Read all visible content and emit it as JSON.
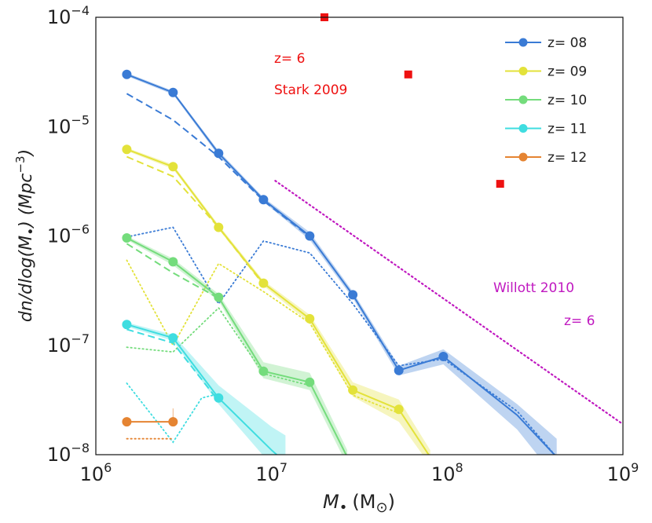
{
  "chart_data": {
    "type": "line",
    "xscale": "log",
    "yscale": "log",
    "xlim_exp": [
      6,
      9
    ],
    "ylim_exp": [
      -8,
      -4
    ],
    "xlabel_main": "M",
    "xlabel_sub": "•",
    "xlabel_unit": "(M",
    "xlabel_unit_sub": "⊙",
    "xlabel_close": ")",
    "ylabel_main": "dn/dlog(M",
    "ylabel_sub": "•",
    "ylabel_unit": ") (Mpc",
    "ylabel_unit_sup": "−3",
    "ylabel_close": ")",
    "x_ticks": [
      {
        "base": "10",
        "exp": "6",
        "value": 6
      },
      {
        "base": "10",
        "exp": "7",
        "value": 7
      },
      {
        "base": "10",
        "exp": "8",
        "value": 8
      },
      {
        "base": "10",
        "exp": "9",
        "value": 9
      }
    ],
    "y_ticks": [
      {
        "base": "10",
        "exp": "−4",
        "value": -4
      },
      {
        "base": "10",
        "exp": "−5",
        "value": -5
      },
      {
        "base": "10",
        "exp": "−6",
        "value": -6
      },
      {
        "base": "10",
        "exp": "−7",
        "value": -7
      },
      {
        "base": "10",
        "exp": "−8",
        "value": -8
      }
    ],
    "series": [
      {
        "name": "z= 08",
        "color": "#3a7bd5",
        "fill": "#3a7bd5",
        "x": [
          1500000.0,
          2750000.0,
          5000000.0,
          9000000.0,
          16500000.0,
          29000000.0,
          53000000.0,
          95000000.0,
          250000000.0,
          420000000.0
        ],
        "y": [
          3e-05,
          2.05e-05,
          5.7e-06,
          2.15e-06,
          1e-06,
          2.9e-07,
          5.9e-08,
          7.9e-08,
          2.3e-08,
          9.5e-09
        ],
        "band_lo": [
          2.9e-05,
          1.97e-05,
          5.4e-06,
          2.05e-06,
          9.2e-07,
          2.7e-07,
          5.3e-08,
          6.7e-08,
          1.7e-08,
          6e-09
        ],
        "band_hi": [
          3.1e-05,
          2.12e-05,
          6e-06,
          2.25e-06,
          1.08e-06,
          3.1e-07,
          6.5e-08,
          9.2e-08,
          2.9e-08,
          1.4e-08
        ],
        "marker_count": 8,
        "dashed_x": [
          1500000.0,
          2750000.0,
          5000000.0,
          9000000.0,
          16500000.0
        ],
        "dashed_y": [
          2e-05,
          1.15e-05,
          5.3e-06,
          2.1e-06,
          9.8e-07
        ],
        "dotted_x": [
          1500000.0,
          2750000.0,
          5000000.0,
          9000000.0,
          16500000.0,
          29000000.0,
          53000000.0,
          95000000.0,
          250000000.0,
          420000000.0
        ],
        "dotted_y": [
          9.8e-07,
          1.2e-06,
          2.4e-07,
          9e-07,
          7e-07,
          2.4e-07,
          6.5e-08,
          7.5e-08,
          2.5e-08,
          9.5e-09
        ]
      },
      {
        "name": "z= 09",
        "color": "#e3e23a",
        "fill": "#e3e23a",
        "x": [
          1500000.0,
          2750000.0,
          5000000.0,
          9000000.0,
          16500000.0,
          29000000.0,
          53000000.0,
          80000000.0
        ],
        "y": [
          6.2e-06,
          4.3e-06,
          1.2e-06,
          3.7e-07,
          1.75e-07,
          3.9e-08,
          2.6e-08,
          9.5e-09
        ],
        "band_lo": [
          6e-06,
          4.1e-06,
          1.15e-06,
          3.5e-07,
          1.6e-07,
          3.4e-08,
          2e-08,
          8e-09
        ],
        "band_hi": [
          6.4e-06,
          4.5e-06,
          1.26e-06,
          3.9e-07,
          1.9e-07,
          4.6e-08,
          3.2e-08,
          1.1e-08
        ],
        "marker_count": 7,
        "dashed_x": [
          1500000.0,
          2750000.0,
          5000000.0,
          9000000.0
        ],
        "dashed_y": [
          5.3e-06,
          3.5e-06,
          1.2e-06,
          3.6e-07
        ],
        "dotted_x": [
          1500000.0,
          2750000.0,
          5000000.0,
          9000000.0,
          16500000.0,
          29000000.0,
          53000000.0
        ],
        "dotted_y": [
          6e-07,
          1e-07,
          5.6e-07,
          3.1e-07,
          1.6e-07,
          3.5e-08,
          2.4e-08
        ]
      },
      {
        "name": "z= 10",
        "color": "#74dc7c",
        "fill": "#74dc7c",
        "x": [
          1500000.0,
          2750000.0,
          5000000.0,
          9000000.0,
          16500000.0,
          27000000.0
        ],
        "y": [
          9.6e-07,
          5.8e-07,
          2.75e-07,
          5.8e-08,
          4.6e-08,
          9.5e-09
        ],
        "band_lo": [
          9.2e-07,
          5.4e-07,
          2.55e-07,
          5e-08,
          3.9e-08,
          8e-09
        ],
        "band_hi": [
          1e-06,
          6.2e-07,
          2.95e-07,
          7e-08,
          5.6e-08,
          1.1e-08
        ],
        "marker_count": 5,
        "dashed_x": [
          1500000.0,
          2750000.0,
          5000000.0
        ],
        "dashed_y": [
          8.5e-07,
          4.6e-07,
          2.7e-07
        ],
        "dotted_x": [
          1500000.0,
          2750000.0,
          5000000.0,
          9000000.0,
          16500000.0
        ],
        "dotted_y": [
          9.6e-08,
          8.7e-08,
          2.2e-07,
          5.5e-08,
          4.3e-08
        ]
      },
      {
        "name": "z= 11",
        "color": "#3fdde0",
        "fill": "#3fdde0",
        "x": [
          1500000.0,
          2750000.0,
          5000000.0,
          10000000.0,
          12000000.0
        ],
        "y": [
          1.55e-07,
          1.17e-07,
          3.3e-08,
          1.1e-08,
          8.5e-09
        ],
        "band_lo": [
          1.48e-07,
          1.1e-07,
          2.9e-08,
          8e-09,
          6e-09
        ],
        "band_hi": [
          1.62e-07,
          1.25e-07,
          4.3e-08,
          1.8e-08,
          1.5e-08
        ],
        "marker_count": 3,
        "dashed_x": [
          1500000.0,
          2750000.0,
          5000000.0
        ],
        "dashed_y": [
          1.4e-07,
          1.05e-07,
          3.1e-08
        ],
        "dotted_x": [
          1500000.0,
          2750000.0,
          4000000.0,
          5000000.0
        ],
        "dotted_y": [
          4.5e-08,
          1.3e-08,
          3.3e-08,
          3.6e-08
        ]
      },
      {
        "name": "z= 12",
        "color": "#e58432",
        "fill": "#e58432",
        "x": [
          1500000.0,
          2750000.0
        ],
        "y": [
          2e-08,
          2e-08
        ],
        "band_lo": [
          2e-08,
          2e-08
        ],
        "band_hi": [
          2e-08,
          2e-08
        ],
        "marker_count": 2,
        "dashed_x": [],
        "dashed_y": [],
        "dotted_x": [
          1500000.0,
          2750000.0
        ],
        "dotted_y": [
          1.4e-08,
          1.4e-08
        ]
      }
    ],
    "stark_points": {
      "color": "#ee1111",
      "x": [
        20000000.0,
        60000000.0,
        200000000.0
      ],
      "y": [
        0.0001,
        3e-05,
        3e-06
      ]
    },
    "willott_line": {
      "color": "#c019c0",
      "x": [
        10500000.0,
        1000000000.0
      ],
      "y": [
        3.2e-06,
        1.9e-08
      ]
    },
    "annotations": {
      "stark_z": "z= 6",
      "stark_ref": "Stark 2009",
      "willott_ref": "Willott 2010",
      "willott_z": "z= 6"
    },
    "legend_position": "top-right"
  }
}
